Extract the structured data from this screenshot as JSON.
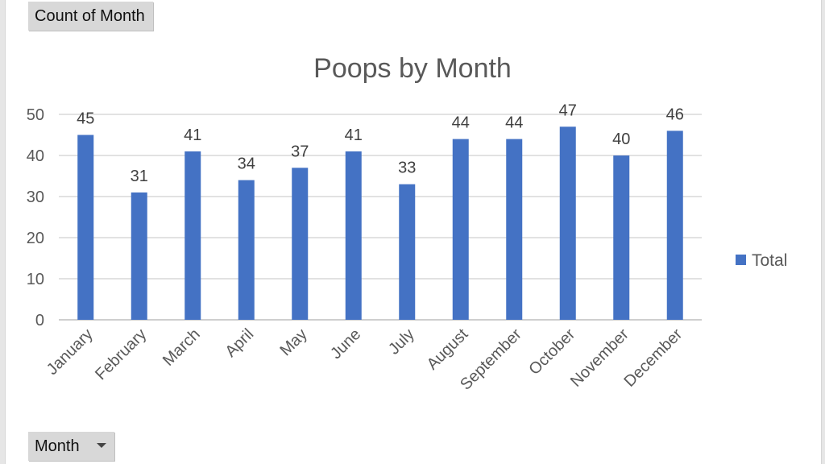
{
  "pivot": {
    "value_field_label": "Count of Month",
    "axis_field_label": "Month",
    "axis_field_icon": "dropdown-arrow-icon"
  },
  "chart_data": {
    "type": "bar",
    "title": "Poops by Month",
    "categories": [
      "January",
      "February",
      "March",
      "April",
      "May",
      "June",
      "July",
      "August",
      "September",
      "October",
      "November",
      "December"
    ],
    "series": [
      {
        "name": "Total",
        "values": [
          45,
          31,
          41,
          34,
          37,
          41,
          33,
          44,
          44,
          47,
          40,
          46
        ],
        "color": "#4472c4"
      }
    ],
    "ylim": [
      0,
      50
    ],
    "yticks": [
      0,
      10,
      20,
      30,
      40,
      50
    ],
    "grid": true,
    "data_labels": true,
    "legend": "right"
  }
}
